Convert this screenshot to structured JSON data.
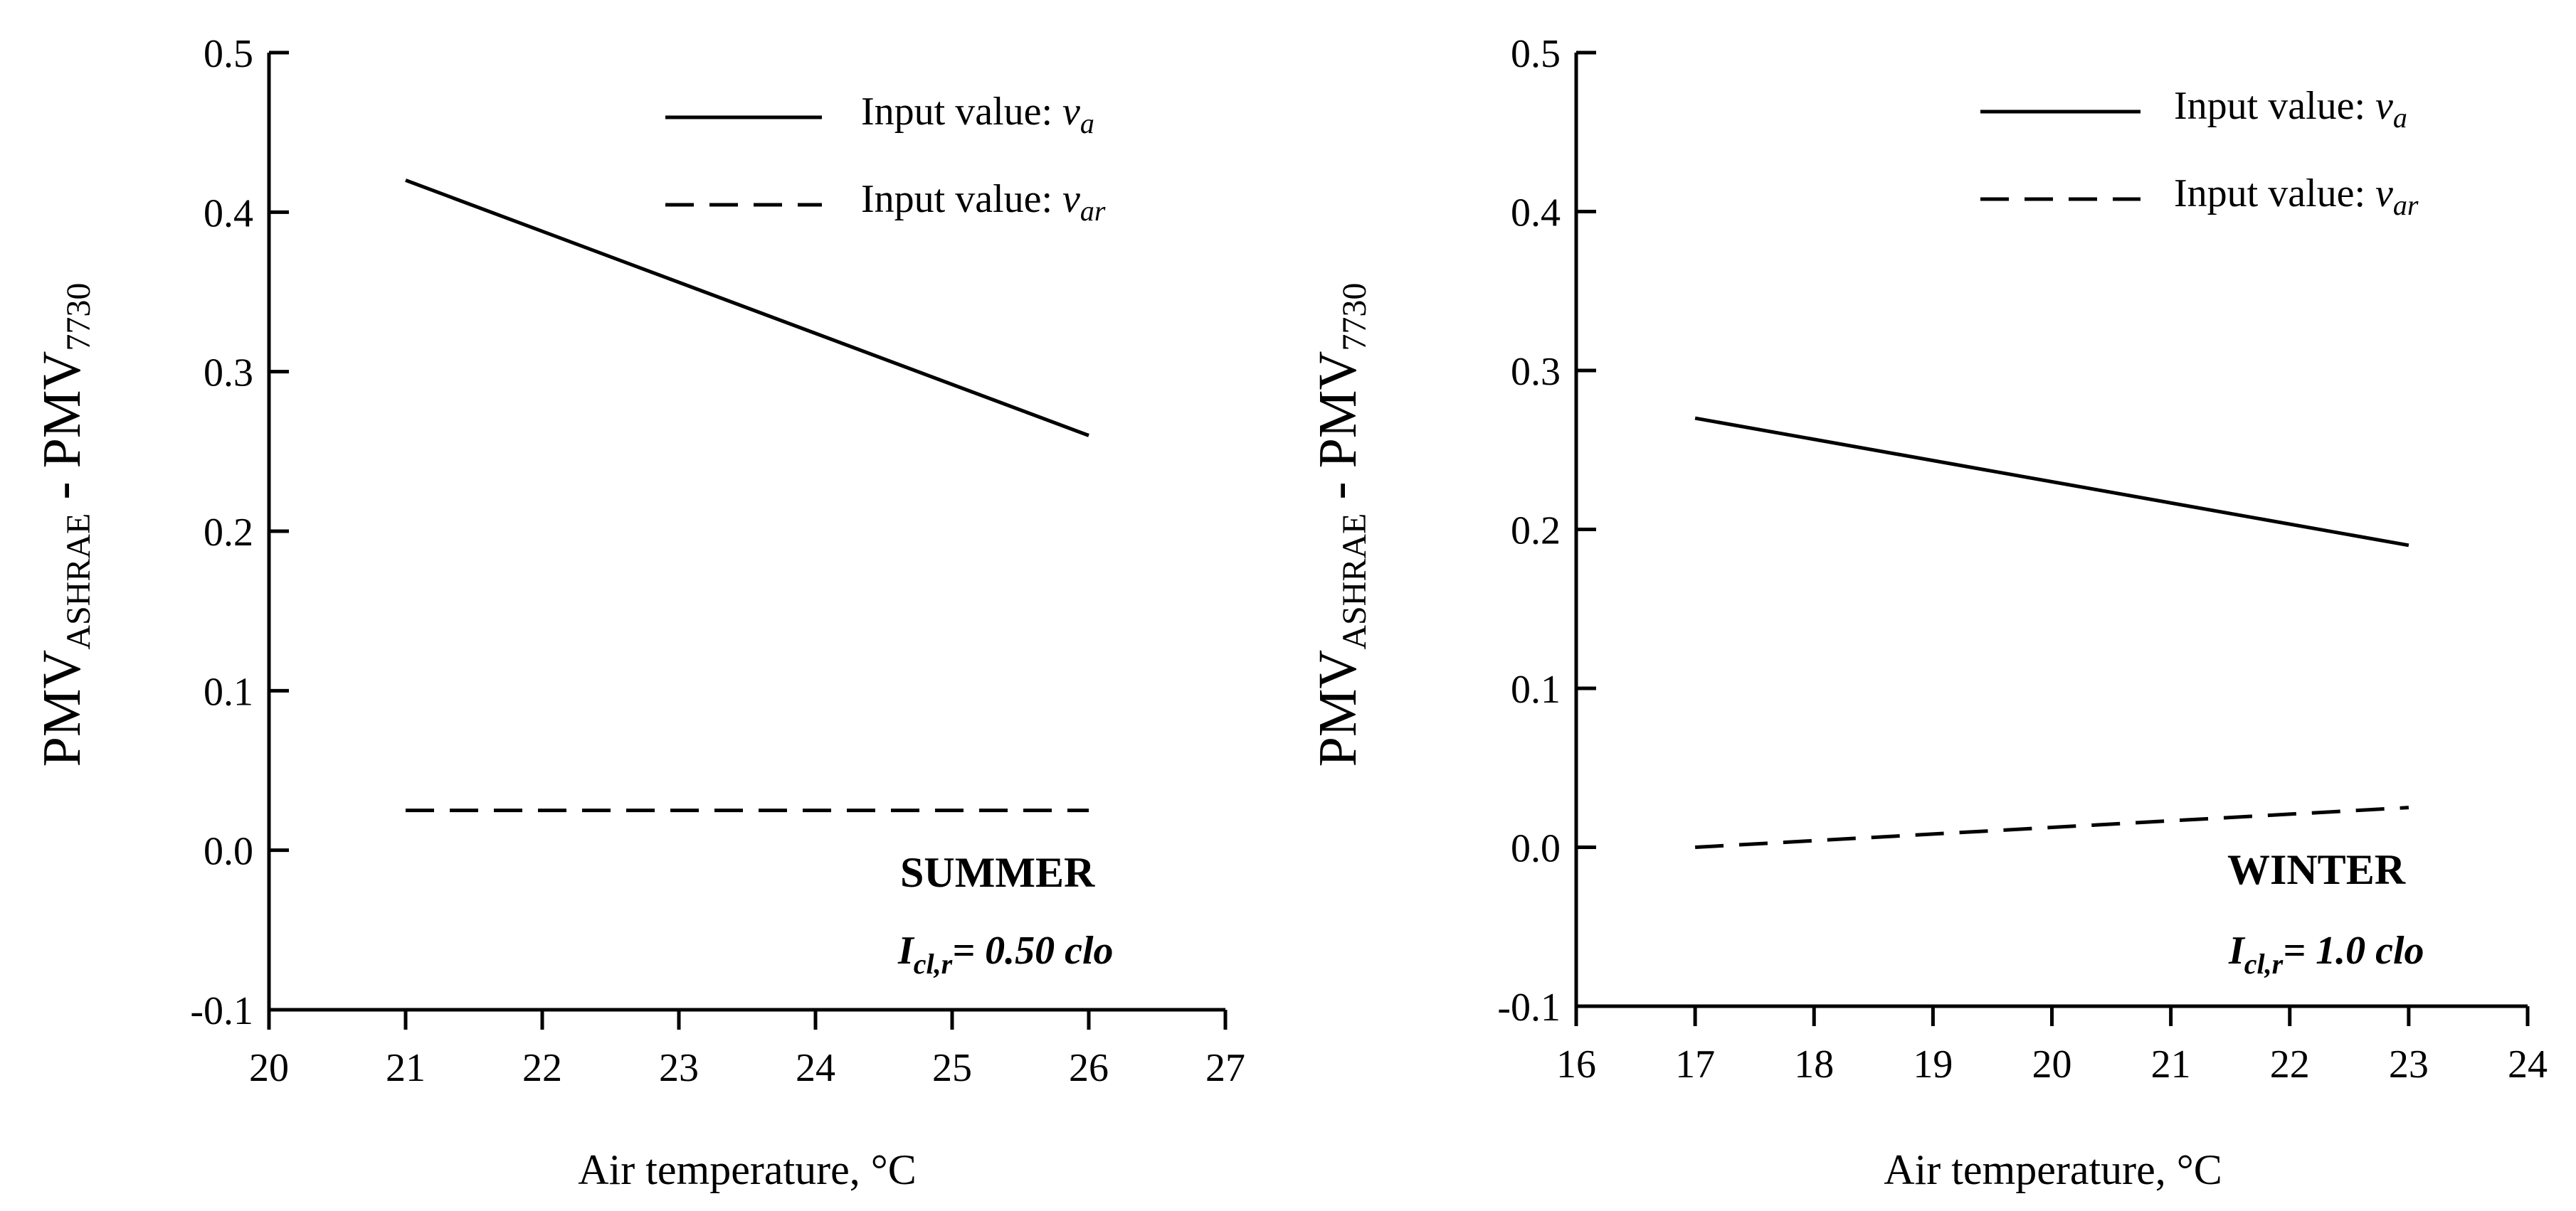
{
  "chart_data": [
    {
      "type": "line",
      "panel": "left",
      "x": [
        21,
        26
      ],
      "series": [
        {
          "name": "Input value: va",
          "style": "solid",
          "x": [
            21,
            26
          ],
          "values": [
            0.42,
            0.26
          ]
        },
        {
          "name": "Input value: var",
          "style": "dashed",
          "x": [
            21,
            26
          ],
          "values": [
            0.025,
            0.025
          ]
        }
      ],
      "xlim": [
        20,
        27
      ],
      "ylim": [
        -0.1,
        0.5
      ],
      "x_ticks": [
        "20",
        "21",
        "22",
        "23",
        "24",
        "25",
        "26",
        "27"
      ],
      "y_ticks": [
        "-0.1",
        "0.0",
        "0.1",
        "0.2",
        "0.3",
        "0.4",
        "0.5"
      ],
      "xlabel": "Air temperature, °C",
      "ylabel": {
        "main": "PMV",
        "sub1": "ASHRAE",
        "mid": " - PMV",
        "sub2": "7730"
      },
      "legend": [
        {
          "prefix": "Input value: ",
          "var": "v",
          "sub": "a",
          "style": "solid"
        },
        {
          "prefix": "Input value: ",
          "var": "v",
          "sub": "ar",
          "style": "dashed"
        }
      ],
      "legend_position": "top-right",
      "annotation": {
        "season": "SUMMER",
        "var": "I",
        "sub": "cl,r",
        "value": "= 0.50 clo"
      }
    },
    {
      "type": "line",
      "panel": "right",
      "x": [
        17,
        23
      ],
      "series": [
        {
          "name": "Input value: va",
          "style": "solid",
          "x": [
            17,
            23
          ],
          "values": [
            0.27,
            0.19
          ]
        },
        {
          "name": "Input value: var",
          "style": "dashed",
          "x": [
            17,
            23
          ],
          "values": [
            0.0,
            0.025
          ]
        }
      ],
      "xlim": [
        16,
        24
      ],
      "ylim": [
        -0.1,
        0.5
      ],
      "x_ticks": [
        "16",
        "17",
        "18",
        "19",
        "20",
        "21",
        "22",
        "23",
        "24"
      ],
      "y_ticks": [
        "-0.1",
        "0.0",
        "0.1",
        "0.2",
        "0.3",
        "0.4",
        "0.5"
      ],
      "xlabel": "Air temperature, °C",
      "ylabel": {
        "main": "PMV",
        "sub1": "ASHRAE",
        "mid": " - PMV",
        "sub2": "7730"
      },
      "legend": [
        {
          "prefix": "Input value: ",
          "var": "v",
          "sub": "a",
          "style": "solid"
        },
        {
          "prefix": "Input value: ",
          "var": "v",
          "sub": "ar",
          "style": "dashed"
        }
      ],
      "legend_position": "top-right",
      "annotation": {
        "season": "WINTER",
        "var": "I",
        "sub": "cl,r",
        "value": "= 1.0 clo"
      }
    }
  ]
}
